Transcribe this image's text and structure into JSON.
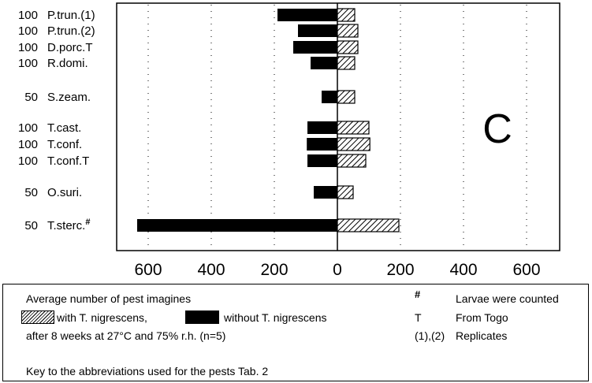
{
  "chart_data": {
    "type": "bar",
    "orientation": "horizontal",
    "panel_label": "C",
    "rows": [
      {
        "n": "100",
        "pest": "P.trun.(1)",
        "without": 190,
        "with": 55
      },
      {
        "n": "100",
        "pest": "P.trun.(2)",
        "without": 125,
        "with": 65
      },
      {
        "n": "100",
        "pest": "D.porc.T",
        "without": 140,
        "with": 65
      },
      {
        "n": "100",
        "pest": "R.domi.",
        "without": 85,
        "with": 55
      },
      {
        "n": "50",
        "pest": "S.zeam.",
        "without": 50,
        "with": 55
      },
      {
        "n": "100",
        "pest": "T.cast.",
        "without": 95,
        "with": 100
      },
      {
        "n": "100",
        "pest": "T.conf.",
        "without": 97,
        "with": 103
      },
      {
        "n": "100",
        "pest": "T.conf.T",
        "without": 95,
        "with": 90
      },
      {
        "n": "50",
        "pest": "O.suri.",
        "without": 75,
        "with": 50
      },
      {
        "n": "50",
        "pest": "T.sterc.",
        "superscript": "#",
        "without": 635,
        "with": 195
      }
    ],
    "x_ticks": [
      "600",
      "400",
      "200",
      "0",
      "200",
      "400",
      "600"
    ],
    "xlim": [
      -690,
      690
    ],
    "series": [
      {
        "name": "with T. nigrescens",
        "key": "with",
        "side": "right",
        "pattern": "hatched"
      },
      {
        "name": "without T. nigrescens",
        "key": "without",
        "side": "left",
        "pattern": "solid"
      }
    ]
  },
  "legend": {
    "line1": "Average number of pest imagines",
    "with_label": "with T. nigrescens,",
    "without_label": "without T. nigrescens",
    "line3": "after 8 weeks at 27°C and 75% r.h. (n=5)",
    "line5": "Key to the abbreviations used for the pests Tab. 2",
    "notes": [
      {
        "symbol": "#",
        "text": "Larvae were counted"
      },
      {
        "symbol": "T",
        "text": "From Togo"
      },
      {
        "symbol": "(1),(2)",
        "text": "Replicates"
      }
    ]
  }
}
